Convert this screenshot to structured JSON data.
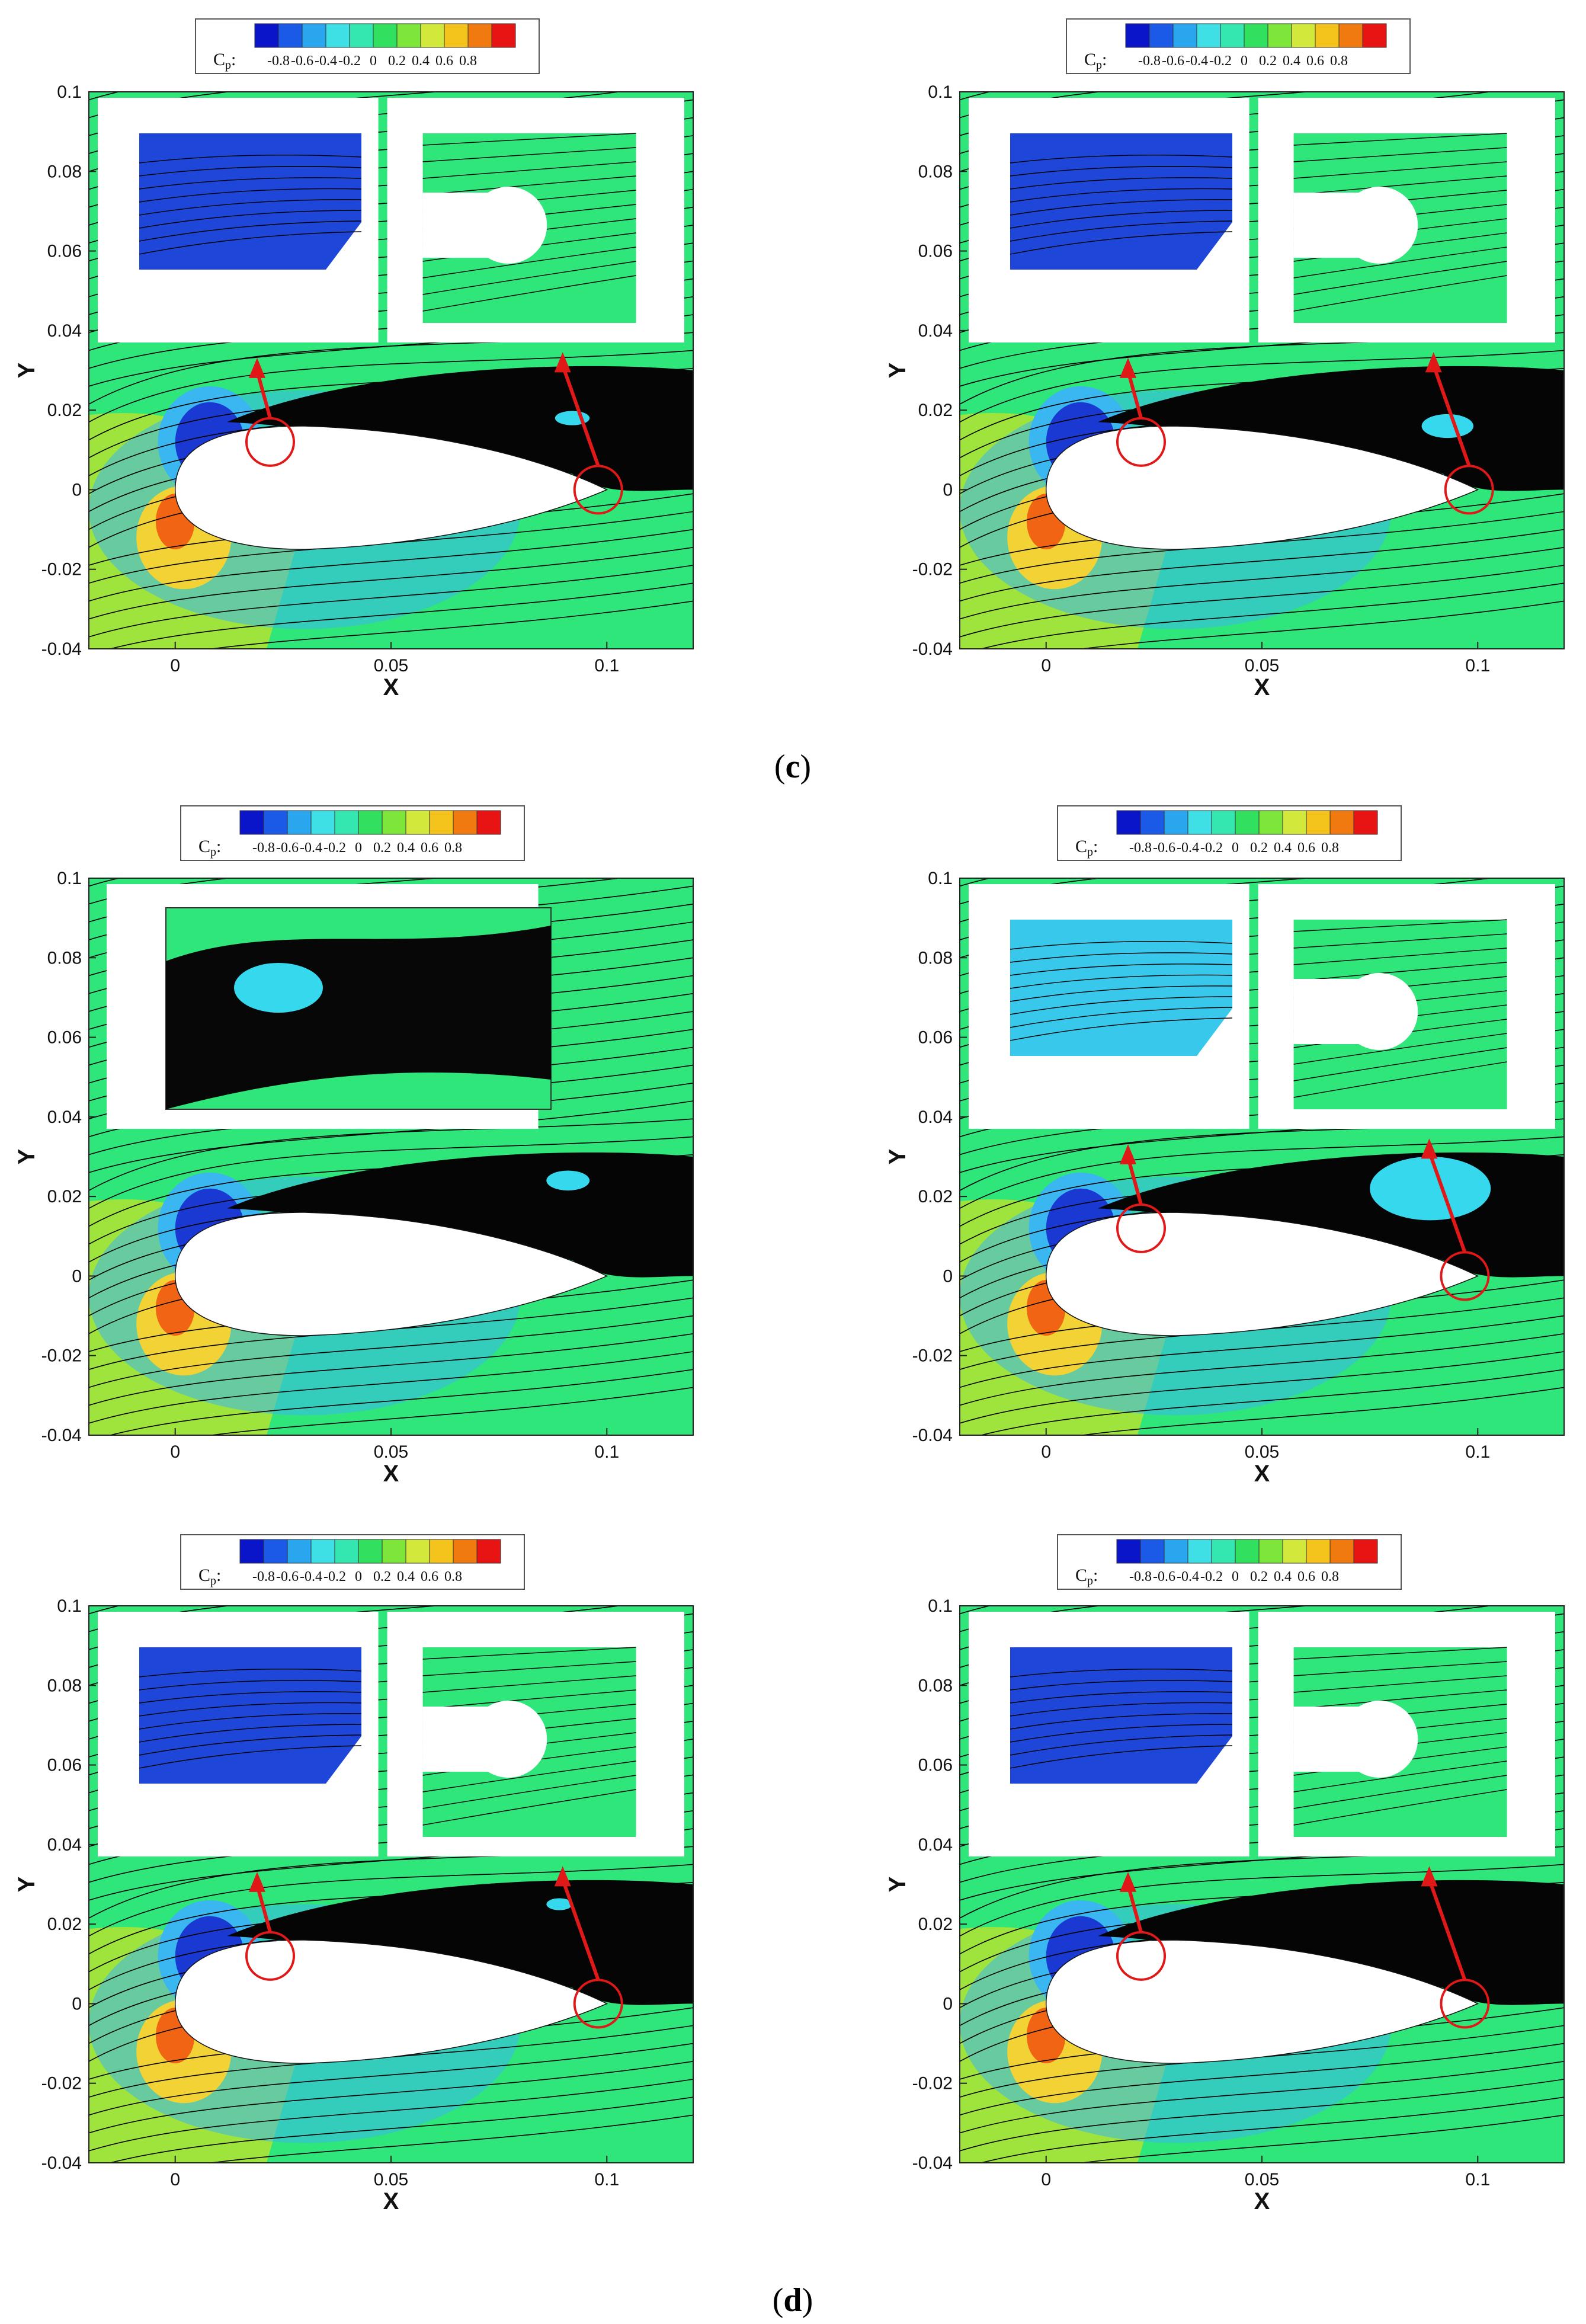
{
  "figure": {
    "captions": [
      {
        "open": "(",
        "letter": "c",
        "close": ")"
      },
      {
        "open": "(",
        "letter": "d",
        "close": ")"
      }
    ]
  },
  "colorbar": {
    "title": "C",
    "title_sub": "p",
    "title_suffix": ":",
    "tick_labels": [
      "-0.8",
      "-0.6",
      "-0.4",
      "-0.2",
      "0",
      "0.2",
      "0.4",
      "0.6",
      "0.8"
    ],
    "colors": [
      "#0a14c8",
      "#1a5ae6",
      "#2aa6ee",
      "#3ee0e6",
      "#34e6b0",
      "#30e05e",
      "#7ee63a",
      "#d2e83a",
      "#f4c41c",
      "#f07a10",
      "#e81414"
    ]
  },
  "palette": {
    "freestream": "#2ee67a",
    "suction_dark": "#1a38d2",
    "suction_light": "#3ab6f0",
    "wake_cyan": "#36d8ee",
    "stagnation": "#f06414",
    "stagnation_halo": "#f2d234",
    "annotation_red": "#e01818",
    "streamline": "#000000"
  },
  "chart_data": [
    {
      "type": "contour",
      "panel": "c-left",
      "title": "",
      "xlabel": "X",
      "ylabel": "Y",
      "xlim": [
        -0.02,
        0.12
      ],
      "ylim": [
        -0.04,
        0.1
      ],
      "xticks": [
        "0",
        "0.05",
        "0.1"
      ],
      "yticks": [
        "-0.04",
        "-0.02",
        "0",
        "0.02",
        "0.04",
        "0.06",
        "0.08",
        "0.1"
      ],
      "colorbar": "C_p",
      "insets": 2,
      "annotations": [
        {
          "circle_at": [
            0.022,
            0.012
          ],
          "arrow": true
        },
        {
          "circle_at": [
            0.098,
            0.0
          ],
          "arrow": true
        }
      ],
      "recirculation_core": {
        "x": 0.092,
        "y": 0.018,
        "rx": 0.004,
        "ry": 0.0018
      }
    },
    {
      "type": "contour",
      "panel": "c-right",
      "title": "",
      "xlabel": "X",
      "ylabel": "Y",
      "xlim": [
        -0.02,
        0.12
      ],
      "ylim": [
        -0.04,
        0.1
      ],
      "xticks": [
        "0",
        "0.05",
        "0.1"
      ],
      "yticks": [
        "-0.04",
        "-0.02",
        "0",
        "0.02",
        "0.04",
        "0.06",
        "0.08",
        "0.1"
      ],
      "colorbar": "C_p",
      "insets": 2,
      "annotations": [
        {
          "circle_at": [
            0.022,
            0.012
          ],
          "arrow": true
        },
        {
          "circle_at": [
            0.098,
            0.0
          ],
          "arrow": true
        }
      ],
      "recirculation_core": {
        "x": 0.093,
        "y": 0.016,
        "rx": 0.006,
        "ry": 0.003
      }
    },
    {
      "type": "contour",
      "panel": "d-top-left",
      "title": "",
      "xlabel": "X",
      "ylabel": "Y",
      "xlim": [
        -0.02,
        0.12
      ],
      "ylim": [
        -0.04,
        0.1
      ],
      "xticks": [
        "0",
        "0.05",
        "0.1"
      ],
      "yticks": [
        "-0.04",
        "-0.02",
        "0",
        "0.02",
        "0.04",
        "0.06",
        "0.08",
        "0.1"
      ],
      "colorbar": "C_p",
      "insets": 1,
      "annotations": [],
      "recirculation_core": {
        "x": 0.091,
        "y": 0.024,
        "rx": 0.005,
        "ry": 0.0025
      }
    },
    {
      "type": "contour",
      "panel": "d-top-right",
      "title": "",
      "xlabel": "X",
      "ylabel": "Y",
      "xlim": [
        -0.02,
        0.12
      ],
      "ylim": [
        -0.04,
        0.1
      ],
      "xticks": [
        "0",
        "0.05",
        "0.1"
      ],
      "yticks": [
        "-0.04",
        "-0.02",
        "0",
        "0.02",
        "0.04",
        "0.06",
        "0.08",
        "0.1"
      ],
      "colorbar": "C_p",
      "insets": 2,
      "annotations": [
        {
          "circle_at": [
            0.022,
            0.012
          ],
          "arrow": true
        },
        {
          "circle_at": [
            0.097,
            0.0
          ],
          "arrow": true
        }
      ],
      "recirculation_core": {
        "x": 0.089,
        "y": 0.022,
        "rx": 0.014,
        "ry": 0.008
      }
    },
    {
      "type": "contour",
      "panel": "d-bottom-left",
      "title": "",
      "xlabel": "X",
      "ylabel": "Y",
      "xlim": [
        -0.02,
        0.12
      ],
      "ylim": [
        -0.04,
        0.1
      ],
      "xticks": [
        "0",
        "0.05",
        "0.1"
      ],
      "yticks": [
        "-0.04",
        "-0.02",
        "0",
        "0.02",
        "0.04",
        "0.06",
        "0.08",
        "0.1"
      ],
      "colorbar": "C_p",
      "insets": 2,
      "annotations": [
        {
          "circle_at": [
            0.022,
            0.012
          ],
          "arrow": true
        },
        {
          "circle_at": [
            0.098,
            0.0
          ],
          "arrow": true
        }
      ],
      "recirculation_core": {
        "x": 0.089,
        "y": 0.025,
        "rx": 0.003,
        "ry": 0.0015
      }
    },
    {
      "type": "contour",
      "panel": "d-bottom-right",
      "title": "",
      "xlabel": "X",
      "ylabel": "Y",
      "xlim": [
        -0.02,
        0.12
      ],
      "ylim": [
        -0.04,
        0.1
      ],
      "xticks": [
        "0",
        "0.05",
        "0.1"
      ],
      "yticks": [
        "-0.04",
        "-0.02",
        "0",
        "0.02",
        "0.04",
        "0.06",
        "0.08",
        "0.1"
      ],
      "colorbar": "C_p",
      "insets": 2,
      "annotations": [
        {
          "circle_at": [
            0.022,
            0.012
          ],
          "arrow": true
        },
        {
          "circle_at": [
            0.097,
            0.0
          ],
          "arrow": true
        }
      ],
      "recirculation_core": null
    }
  ]
}
